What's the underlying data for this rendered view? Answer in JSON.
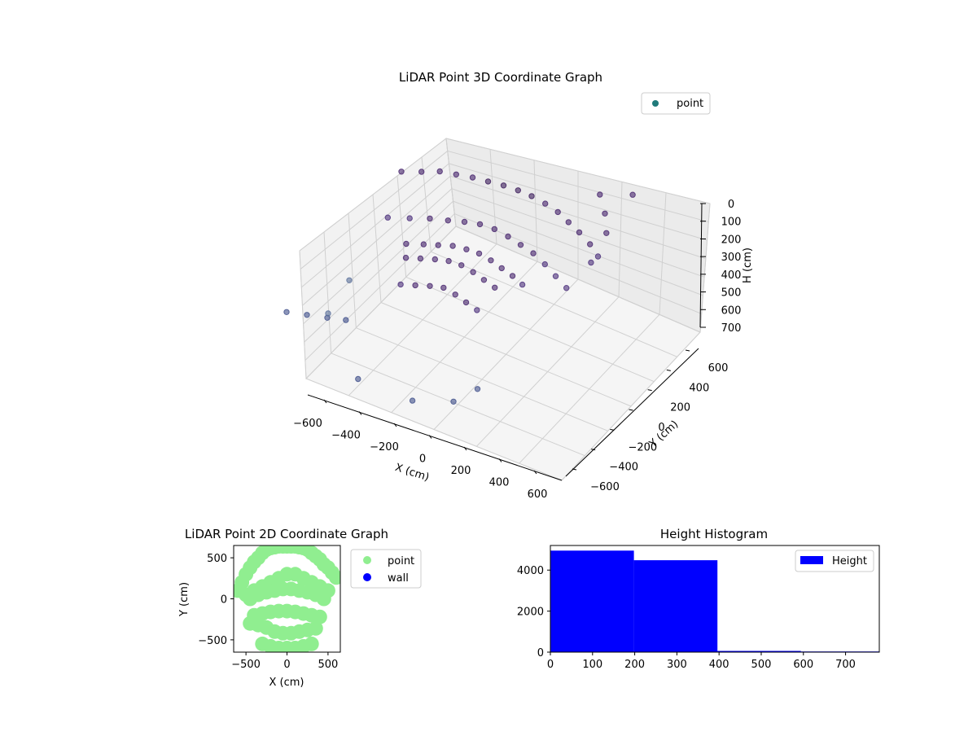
{
  "chart_data": [
    {
      "type": "scatter",
      "projection": "3d",
      "title": "LiDAR Point 3D Coordinate Graph",
      "xlabel": "X (cm)",
      "ylabel": "Y (cm)",
      "zlabel": "H (cm)",
      "xlim": [
        -700,
        700
      ],
      "ylim": [
        -700,
        700
      ],
      "zlim": [
        0,
        750
      ],
      "z_inverted": true,
      "xticks": [
        -600,
        -400,
        -200,
        0,
        200,
        400,
        600
      ],
      "yticks": [
        -600,
        -400,
        -200,
        0,
        200,
        400,
        600
      ],
      "zticks": [
        0,
        100,
        200,
        300,
        400,
        500,
        600,
        700
      ],
      "legend": {
        "position": "top-right",
        "entries": [
          {
            "label": "point",
            "color": "#1f7a7a"
          }
        ]
      },
      "colormap": "viridis",
      "grid": true,
      "series": [
        {
          "name": "point",
          "description_points": "sample of a dense point cloud; dense dome/cylinder near center, sparse outliers",
          "x": [
            -520,
            -430,
            -350,
            -270,
            -190,
            -110,
            -30,
            50,
            130,
            210,
            290,
            370,
            450,
            530,
            600,
            -480,
            -380,
            -290,
            -200,
            -120,
            -40,
            40,
            120,
            200,
            280,
            360,
            440,
            520,
            -300,
            -220,
            -150,
            -80,
            -10,
            60,
            130,
            200,
            270,
            340,
            -250,
            -180,
            -110,
            -40,
            30,
            100,
            170,
            240,
            -200,
            -130,
            -60,
            10,
            80,
            150,
            220,
            -620,
            -560,
            -500,
            -450,
            480,
            560,
            620,
            640,
            -640,
            -600,
            380,
            300,
            -200,
            100,
            650
          ],
          "y": [
            420,
            460,
            500,
            520,
            540,
            550,
            560,
            560,
            550,
            540,
            520,
            480,
            440,
            400,
            350,
            200,
            240,
            280,
            300,
            320,
            330,
            330,
            320,
            300,
            280,
            250,
            210,
            170,
            50,
            80,
            100,
            120,
            130,
            130,
            120,
            100,
            80,
            50,
            -50,
            -30,
            -10,
            0,
            0,
            -10,
            -30,
            -50,
            -200,
            -180,
            -160,
            -150,
            -160,
            -180,
            -200,
            -600,
            -500,
            -400,
            -300,
            600,
            500,
            400,
            200,
            100,
            -200,
            -500,
            -600,
            -650,
            -650,
            620
          ],
          "z": [
            180,
            170,
            160,
            160,
            160,
            160,
            160,
            160,
            160,
            170,
            180,
            190,
            200,
            220,
            240,
            320,
            310,
            300,
            290,
            280,
            270,
            270,
            280,
            290,
            300,
            320,
            340,
            360,
            330,
            320,
            310,
            300,
            300,
            300,
            310,
            320,
            330,
            340,
            340,
            330,
            320,
            310,
            310,
            320,
            330,
            340,
            400,
            390,
            380,
            370,
            380,
            390,
            400,
            500,
            550,
            600,
            650,
            50,
            80,
            120,
            180,
            700,
            720,
            650,
            700,
            720,
            740,
            0
          ]
        }
      ]
    },
    {
      "type": "scatter",
      "title": "LiDAR Point 2D Coordinate Graph",
      "xlabel": "X (cm)",
      "ylabel": "Y (cm)",
      "xlim": [
        -650,
        650
      ],
      "ylim": [
        -650,
        650
      ],
      "xticks": [
        -500,
        0,
        500
      ],
      "yticks": [
        -500,
        0,
        500
      ],
      "legend": {
        "position": "outside-right",
        "entries": [
          {
            "label": "point",
            "color": "#90ee90"
          },
          {
            "label": "wall",
            "color": "#0000ff"
          }
        ]
      },
      "series": [
        {
          "name": "point",
          "x": [
            -600,
            -550,
            -500,
            -450,
            -400,
            -350,
            -300,
            -250,
            -200,
            -150,
            -100,
            -50,
            0,
            50,
            100,
            150,
            200,
            250,
            300,
            350,
            400,
            450,
            500,
            550,
            600,
            -500,
            -400,
            -300,
            -200,
            -100,
            0,
            100,
            200,
            300,
            400,
            500,
            -450,
            -350,
            -250,
            -150,
            -50,
            50,
            150,
            250,
            350,
            450,
            -400,
            -300,
            -200,
            -100,
            0,
            100,
            200,
            300,
            400,
            -450,
            -350,
            -250,
            -150,
            -50,
            50,
            150,
            250,
            350,
            -300,
            -200,
            -100,
            0,
            100,
            200,
            300
          ],
          "y": [
            100,
            200,
            300,
            380,
            450,
            500,
            560,
            600,
            620,
            630,
            640,
            640,
            640,
            640,
            640,
            630,
            620,
            600,
            560,
            520,
            480,
            420,
            380,
            320,
            260,
            50,
            100,
            150,
            200,
            250,
            300,
            300,
            250,
            200,
            150,
            100,
            0,
            50,
            80,
            100,
            120,
            120,
            100,
            80,
            50,
            0,
            -200,
            -180,
            -160,
            -150,
            -150,
            -160,
            -180,
            -200,
            -220,
            -300,
            -320,
            -350,
            -400,
            -420,
            -420,
            -400,
            -380,
            -360,
            -550,
            -580,
            -600,
            -600,
            -600,
            -580,
            -550
          ]
        },
        {
          "name": "wall",
          "x": [],
          "y": []
        }
      ]
    },
    {
      "type": "bar",
      "subtype": "histogram",
      "title": "Height Histogram",
      "xlabel": "",
      "ylabel": "",
      "xlim": [
        0,
        780
      ],
      "ylim": [
        0,
        5200
      ],
      "xticks": [
        0,
        100,
        200,
        300,
        400,
        500,
        600,
        700
      ],
      "yticks": [
        0,
        2000,
        4000
      ],
      "legend": {
        "position": "top-right",
        "entries": [
          {
            "label": "Height",
            "color": "#0000ff"
          }
        ]
      },
      "bins": [
        {
          "from": 0,
          "to": 198,
          "count": 4950
        },
        {
          "from": 198,
          "to": 396,
          "count": 4480
        },
        {
          "from": 396,
          "to": 594,
          "count": 60
        },
        {
          "from": 594,
          "to": 792,
          "count": 30
        }
      ]
    }
  ]
}
